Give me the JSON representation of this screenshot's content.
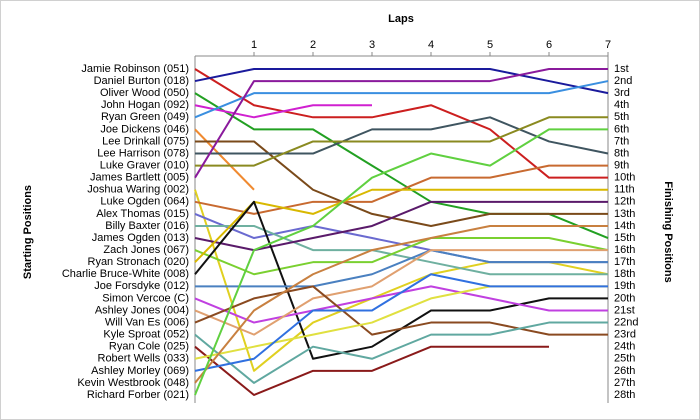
{
  "chart_data": {
    "type": "line",
    "title": "Laps",
    "y_label_left": "Starting Positions",
    "y_label_right": "Finishing Positions",
    "x": [
      0,
      1,
      2,
      3,
      4,
      5,
      6,
      7
    ],
    "xlim": [
      0,
      7
    ],
    "xticks": [
      1,
      2,
      3,
      4,
      5,
      6,
      7
    ],
    "ylim": [
      1,
      28
    ],
    "inverted_y": true,
    "finishing_positions": [
      "1st",
      "2nd",
      "3rd",
      "4th",
      "5th",
      "6th",
      "7th",
      "8th",
      "9th",
      "10th",
      "11th",
      "12th",
      "13th",
      "14th",
      "15th",
      "16th",
      "17th",
      "18th",
      "19th",
      "20th",
      "21st",
      "22nd",
      "23rd",
      "24th",
      "25th",
      "26th",
      "27th",
      "28th"
    ],
    "series": [
      {
        "name": "Jamie Robinson (051)",
        "color": "#cc1f1f",
        "values": [
          1,
          4,
          5,
          5,
          4,
          6,
          10,
          10
        ]
      },
      {
        "name": "Daniel Burton (018)",
        "color": "#1a1a9c",
        "values": [
          2,
          1,
          1,
          1,
          1,
          1,
          2,
          3
        ]
      },
      {
        "name": "Oliver Wood (050)",
        "color": "#22a022",
        "values": [
          3,
          6,
          6,
          9,
          12,
          13,
          13,
          15
        ]
      },
      {
        "name": "John Hogan (092)",
        "color": "#d020d0",
        "values": [
          4,
          5,
          4,
          4,
          null,
          null,
          null,
          null
        ]
      },
      {
        "name": "Ryan Green (049)",
        "color": "#3a8fe0",
        "values": [
          5,
          3,
          3,
          3,
          3,
          3,
          3,
          2
        ]
      },
      {
        "name": "Joe Dickens (046)",
        "color": "#f08a30",
        "values": [
          6,
          11,
          null,
          null,
          null,
          null,
          null,
          null
        ]
      },
      {
        "name": "Lee Drinkall (075)",
        "color": "#7a4a1a",
        "values": [
          7,
          7,
          11,
          13,
          14,
          13,
          13,
          13
        ]
      },
      {
        "name": "Lee Harrison (078)",
        "color": "#3f5560",
        "values": [
          8,
          8,
          8,
          6,
          6,
          5,
          7,
          8
        ]
      },
      {
        "name": "Luke Graver (010)",
        "color": "#8a8a20",
        "values": [
          9,
          9,
          7,
          7,
          7,
          7,
          5,
          5
        ]
      },
      {
        "name": "James Bartlett (005)",
        "color": "#8a1a9c",
        "values": [
          10,
          2,
          2,
          2,
          2,
          2,
          1,
          1
        ]
      },
      {
        "name": "Joshua Waring (002)",
        "color": "#e0d020",
        "values": [
          11,
          26,
          22,
          20,
          18,
          17,
          17,
          18
        ]
      },
      {
        "name": "Luke Ogden (064)",
        "color": "#c86a30",
        "values": [
          12,
          13,
          12,
          12,
          10,
          10,
          9,
          9
        ]
      },
      {
        "name": "Alex Thomas (015)",
        "color": "#6a6ad0",
        "values": [
          13,
          15,
          14,
          15,
          16,
          17,
          17,
          17
        ]
      },
      {
        "name": "Billy Baxter (016)",
        "color": "#6fb0a0",
        "values": [
          14,
          14,
          16,
          16,
          17,
          18,
          18,
          18
        ]
      },
      {
        "name": "James Ogden (013)",
        "color": "#5a1a6a",
        "values": [
          15,
          16,
          15,
          14,
          12,
          12,
          12,
          12
        ]
      },
      {
        "name": "Zach Jones (067)",
        "color": "#7ad030",
        "values": [
          16,
          18,
          17,
          17,
          15,
          15,
          15,
          16
        ]
      },
      {
        "name": "Ryan Stronach (020)",
        "color": "#d8b800",
        "values": [
          17,
          12,
          13,
          11,
          11,
          11,
          11,
          11
        ]
      },
      {
        "name": "Charlie Bruce-White (008)",
        "color": "#111111",
        "values": [
          18,
          12,
          25,
          24,
          21,
          21,
          20,
          20
        ]
      },
      {
        "name": "Joe Forsdyke (012)",
        "color": "#4a80c0",
        "values": [
          19,
          19,
          19,
          18,
          16,
          17,
          17,
          17
        ]
      },
      {
        "name": "Simon Vercoe (C)",
        "color": "#c040e0",
        "values": [
          20,
          22,
          21,
          20,
          19,
          20,
          21,
          21
        ]
      },
      {
        "name": "Ashley Jones (004)",
        "color": "#e0a070",
        "values": [
          21,
          23,
          20,
          19,
          16,
          16,
          16,
          16
        ]
      },
      {
        "name": "Will Van Es (006)",
        "color": "#8a4a20",
        "values": [
          22,
          20,
          19,
          23,
          22,
          22,
          23,
          23
        ]
      },
      {
        "name": "Kyle Sproat (052)",
        "color": "#60a8a0",
        "values": [
          23,
          27,
          24,
          25,
          23,
          23,
          22,
          22
        ]
      },
      {
        "name": "Ryan Cole (025)",
        "color": "#8a1a1a",
        "values": [
          24,
          28,
          26,
          26,
          24,
          24,
          24,
          null
        ]
      },
      {
        "name": "Robert Wells (033)",
        "color": "#e0e040",
        "values": [
          25,
          24,
          23,
          22,
          20,
          19,
          19,
          19
        ]
      },
      {
        "name": "Ashley Morley (069)",
        "color": "#3070e0",
        "values": [
          26,
          25,
          21,
          21,
          18,
          19,
          19,
          19
        ]
      },
      {
        "name": "Kevin Westbrook (048)",
        "color": "#c88040",
        "values": [
          27,
          21,
          18,
          16,
          15,
          14,
          14,
          14
        ]
      },
      {
        "name": "Richard Forber (021)",
        "color": "#60d040",
        "values": [
          28,
          16,
          14,
          10,
          8,
          9,
          6,
          6
        ]
      }
    ]
  }
}
